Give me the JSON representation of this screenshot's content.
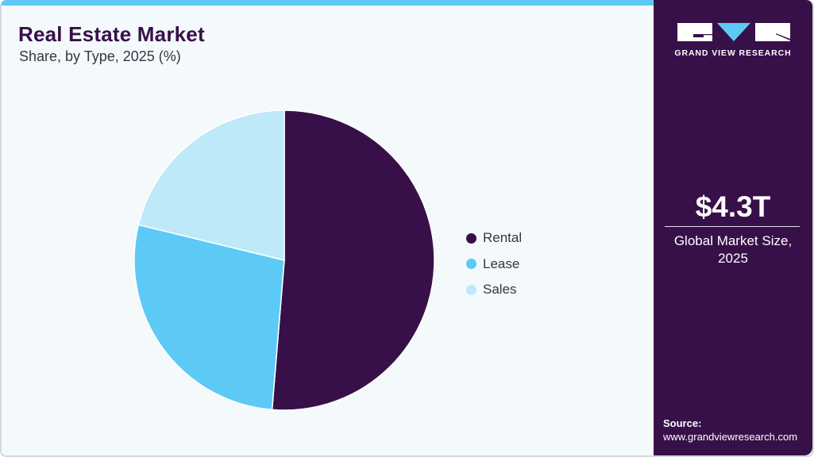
{
  "header": {
    "title": "Real Estate Market",
    "subtitle": "Share, by Type, 2025 (%)"
  },
  "colors": {
    "brand_dark": "#381049",
    "accent_cyan": "#5DCAF6",
    "light_cyan": "#BDE9F9",
    "background": "#F4F9FC"
  },
  "legend": {
    "items": [
      {
        "label": "Rental",
        "color": "#381049"
      },
      {
        "label": "Lease",
        "color": "#5DCAF6"
      },
      {
        "label": "Sales",
        "color": "#BDE9F9"
      }
    ]
  },
  "sidebar": {
    "logo_text": "GRAND VIEW RESEARCH",
    "market_value": "$4.3T",
    "market_label_line1": "Global Market Size,",
    "market_label_line2": "2025",
    "source_label": "Source:",
    "source_url": "www.grandviewresearch.com"
  },
  "chart_data": {
    "type": "pie",
    "title": "Real Estate Market",
    "subtitle": "Share, by Type, 2025 (%)",
    "categories": [
      "Rental",
      "Lease",
      "Sales"
    ],
    "values": [
      51.3,
      27.5,
      21.2
    ],
    "colors": [
      "#381049",
      "#5DCAF6",
      "#BDE9F9"
    ],
    "start_angle": "12 o'clock, clockwise",
    "legend_position": "right",
    "data_labels": false
  }
}
